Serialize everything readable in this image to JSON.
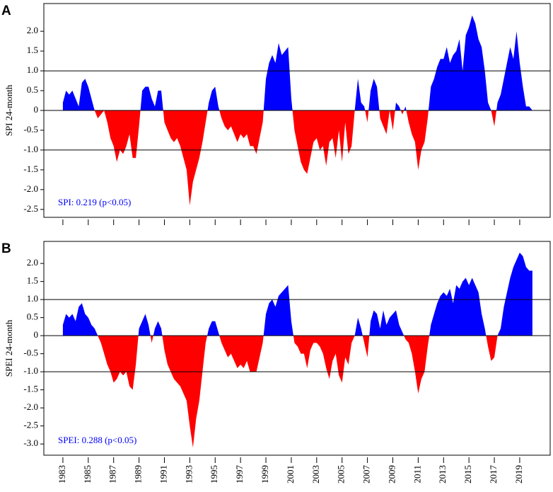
{
  "chart_data": [
    {
      "type": "area",
      "panel_label": "A",
      "ylabel": "SPI 24-month",
      "annotation": "SPI: 0.219 (p<0.05)",
      "pos_color": "#0000ff",
      "neg_color": "#ff0000",
      "hlines": [
        -1,
        0,
        1
      ],
      "xlim": [
        1981.5,
        2021.4
      ],
      "ylim": [
        -2.7,
        2.7
      ],
      "yticks": [
        {
          "value": 2,
          "label": "2.0"
        },
        1.5,
        {
          "value": 1,
          "label": "1.0"
        },
        0.5,
        0,
        -0.5,
        {
          "value": -1,
          "label": "-1.0"
        },
        -1.5,
        {
          "value": -2,
          "label": "-2.0"
        },
        -2.5
      ],
      "xticks": [
        1983,
        1985,
        1987,
        1989,
        1991,
        1993,
        1995,
        1997,
        1999,
        2001,
        2003,
        2005,
        2007,
        2009,
        2011,
        2013,
        2015,
        2017,
        2019
      ],
      "x": [
        1983,
        1983.25,
        1983.5,
        1983.75,
        1984,
        1984.25,
        1984.5,
        1984.75,
        1985,
        1985.25,
        1985.5,
        1985.75,
        1986,
        1986.25,
        1986.5,
        1986.75,
        1987,
        1987.25,
        1987.5,
        1987.75,
        1988,
        1988.25,
        1988.5,
        1988.75,
        1989,
        1989.25,
        1989.5,
        1989.75,
        1990,
        1990.25,
        1990.5,
        1990.75,
        1991,
        1991.25,
        1991.5,
        1991.75,
        1992,
        1992.25,
        1992.5,
        1992.75,
        1993,
        1993.25,
        1993.5,
        1993.75,
        1994,
        1994.25,
        1994.5,
        1994.75,
        1995,
        1995.25,
        1995.5,
        1995.75,
        1996,
        1996.25,
        1996.5,
        1996.75,
        1997,
        1997.25,
        1997.5,
        1997.75,
        1998,
        1998.25,
        1998.5,
        1998.75,
        1999,
        1999.25,
        1999.5,
        1999.75,
        2000,
        2000.25,
        2000.5,
        2000.75,
        2001,
        2001.25,
        2001.5,
        2001.75,
        2002,
        2002.25,
        2002.5,
        2002.75,
        2003,
        2003.25,
        2003.5,
        2003.75,
        2004,
        2004.25,
        2004.5,
        2004.75,
        2005,
        2005.25,
        2005.5,
        2005.75,
        2006,
        2006.25,
        2006.5,
        2006.75,
        2007,
        2007.25,
        2007.5,
        2007.75,
        2008,
        2008.25,
        2008.5,
        2008.75,
        2009,
        2009.25,
        2009.5,
        2009.75,
        2010,
        2010.25,
        2010.5,
        2010.75,
        2011,
        2011.25,
        2011.5,
        2011.75,
        2012,
        2012.25,
        2012.5,
        2012.75,
        2013,
        2013.25,
        2013.5,
        2013.75,
        2014,
        2014.25,
        2014.5,
        2014.75,
        2015,
        2015.25,
        2015.5,
        2015.75,
        2016,
        2016.25,
        2016.5,
        2016.75,
        2017,
        2017.25,
        2017.5,
        2017.75,
        2018,
        2018.25,
        2018.5,
        2018.75,
        2019,
        2019.25,
        2019.5,
        2019.75,
        2020
      ],
      "values": [
        0.2,
        0.5,
        0.4,
        0.5,
        0.3,
        0.1,
        0.7,
        0.8,
        0.6,
        0.3,
        0.0,
        -0.2,
        -0.1,
        0.0,
        -0.3,
        -0.7,
        -0.9,
        -1.3,
        -1.0,
        -1.1,
        -0.9,
        -0.6,
        -1.2,
        -1.2,
        -0.4,
        0.5,
        0.6,
        0.6,
        0.3,
        0.1,
        0.5,
        0.5,
        -0.3,
        -0.5,
        -0.7,
        -0.8,
        -0.7,
        -0.9,
        -1.2,
        -1.5,
        -2.4,
        -1.8,
        -1.5,
        -1.2,
        -0.8,
        -0.3,
        0.2,
        0.5,
        0.6,
        0.1,
        -0.2,
        -0.4,
        -0.5,
        -0.4,
        -0.6,
        -0.8,
        -0.6,
        -0.7,
        -0.6,
        -0.9,
        -0.9,
        -1.1,
        -0.7,
        -0.3,
        0.8,
        1.2,
        1.4,
        1.2,
        1.7,
        1.4,
        1.5,
        1.6,
        0.3,
        -0.5,
        -0.9,
        -1.3,
        -1.5,
        -1.6,
        -1.2,
        -0.8,
        -0.7,
        -1.0,
        -0.9,
        -1.4,
        -0.8,
        -0.7,
        -1.2,
        -0.5,
        -1.3,
        -0.3,
        -1.1,
        -0.9,
        0.0,
        0.8,
        0.2,
        0.1,
        -0.3,
        0.5,
        0.8,
        0.6,
        -0.2,
        -0.4,
        -0.6,
        0.0,
        -0.5,
        0.2,
        0.1,
        -0.1,
        0.1,
        -0.3,
        -0.6,
        -0.8,
        -1.5,
        -1.0,
        -0.8,
        -0.2,
        0.6,
        0.8,
        1.1,
        1.3,
        1.3,
        1.6,
        1.2,
        1.4,
        1.5,
        1.8,
        1.0,
        1.9,
        2.1,
        2.4,
        2.2,
        1.8,
        1.6,
        1.0,
        0.2,
        0.0,
        -0.4,
        0.2,
        0.4,
        0.8,
        1.2,
        1.6,
        1.3,
        2.0,
        1.2,
        0.6,
        0.1,
        0.1,
        0.0
      ]
    },
    {
      "type": "area",
      "panel_label": "B",
      "ylabel": "SPEI 24-month",
      "annotation": "SPEI: 0.288 (p<0.05)",
      "pos_color": "#0000ff",
      "neg_color": "#ff0000",
      "hlines": [
        -1,
        0,
        1
      ],
      "xlim": [
        1981.5,
        2021.4
      ],
      "ylim": [
        -3.31,
        2.61
      ],
      "yticks": [
        {
          "value": 2,
          "label": "2.0"
        },
        1.5,
        {
          "value": 1,
          "label": "1.0"
        },
        0.5,
        0,
        -0.5,
        {
          "value": -1,
          "label": "-1.0"
        },
        -1.5,
        {
          "value": -2,
          "label": "-2.0"
        },
        -2.5,
        {
          "value": -3,
          "label": "-3.0"
        }
      ],
      "xticks": [
        1983,
        1985,
        1987,
        1989,
        1991,
        1993,
        1995,
        1997,
        1999,
        2001,
        2003,
        2005,
        2007,
        2009,
        2011,
        2013,
        2015,
        2017,
        2019
      ],
      "x": [
        1983,
        1983.25,
        1983.5,
        1983.75,
        1984,
        1984.25,
        1984.5,
        1984.75,
        1985,
        1985.25,
        1985.5,
        1985.75,
        1986,
        1986.25,
        1986.5,
        1986.75,
        1987,
        1987.25,
        1987.5,
        1987.75,
        1988,
        1988.25,
        1988.5,
        1988.75,
        1989,
        1989.25,
        1989.5,
        1989.75,
        1990,
        1990.25,
        1990.5,
        1990.75,
        1991,
        1991.25,
        1991.5,
        1991.75,
        1992,
        1992.25,
        1992.5,
        1992.75,
        1993,
        1993.25,
        1993.5,
        1993.75,
        1994,
        1994.25,
        1994.5,
        1994.75,
        1995,
        1995.25,
        1995.5,
        1995.75,
        1996,
        1996.25,
        1996.5,
        1996.75,
        1997,
        1997.25,
        1997.5,
        1997.75,
        1998,
        1998.25,
        1998.5,
        1998.75,
        1999,
        1999.25,
        1999.5,
        1999.75,
        2000,
        2000.25,
        2000.5,
        2000.75,
        2001,
        2001.25,
        2001.5,
        2001.75,
        2002,
        2002.25,
        2002.5,
        2002.75,
        2003,
        2003.25,
        2003.5,
        2003.75,
        2004,
        2004.25,
        2004.5,
        2004.75,
        2005,
        2005.25,
        2005.5,
        2005.75,
        2006,
        2006.25,
        2006.5,
        2006.75,
        2007,
        2007.25,
        2007.5,
        2007.75,
        2008,
        2008.25,
        2008.5,
        2008.75,
        2009,
        2009.25,
        2009.5,
        2009.75,
        2010,
        2010.25,
        2010.5,
        2010.75,
        2011,
        2011.25,
        2011.5,
        2011.75,
        2012,
        2012.25,
        2012.5,
        2012.75,
        2013,
        2013.25,
        2013.5,
        2013.75,
        2014,
        2014.25,
        2014.5,
        2014.75,
        2015,
        2015.25,
        2015.5,
        2015.75,
        2016,
        2016.25,
        2016.5,
        2016.75,
        2017,
        2017.25,
        2017.5,
        2017.75,
        2018,
        2018.25,
        2018.5,
        2018.75,
        2019,
        2019.25,
        2019.5,
        2019.75,
        2020
      ],
      "values": [
        0.3,
        0.6,
        0.5,
        0.6,
        0.4,
        0.8,
        0.9,
        0.6,
        0.5,
        0.3,
        0.2,
        0.0,
        -0.2,
        -0.5,
        -0.8,
        -1.0,
        -1.3,
        -1.2,
        -1.0,
        -1.1,
        -1.0,
        -1.4,
        -1.5,
        -0.8,
        0.2,
        0.4,
        0.6,
        0.3,
        -0.2,
        0.2,
        0.4,
        0.2,
        -0.4,
        -0.8,
        -1.0,
        -1.2,
        -1.3,
        -1.4,
        -1.6,
        -1.8,
        -2.5,
        -3.1,
        -2.3,
        -1.8,
        -1.0,
        -0.2,
        0.2,
        0.4,
        0.4,
        0.1,
        -0.2,
        -0.4,
        -0.6,
        -0.5,
        -0.7,
        -0.9,
        -0.8,
        -0.9,
        -0.7,
        -1.0,
        -1.0,
        -1.0,
        -0.6,
        -0.2,
        0.6,
        0.9,
        1.0,
        0.8,
        1.1,
        1.2,
        1.3,
        1.4,
        0.4,
        -0.2,
        -0.3,
        -0.5,
        -0.5,
        -0.9,
        -0.4,
        -0.2,
        -0.2,
        -0.3,
        -0.5,
        -0.9,
        -1.2,
        -0.7,
        -0.5,
        -1.1,
        -1.3,
        -0.6,
        -0.8,
        -0.2,
        0.0,
        0.5,
        0.2,
        -0.2,
        -0.6,
        0.4,
        0.7,
        0.6,
        0.2,
        0.7,
        0.3,
        0.5,
        0.6,
        0.7,
        0.3,
        0.1,
        -0.1,
        -0.2,
        -0.5,
        -1.0,
        -1.6,
        -1.2,
        -1.0,
        -0.3,
        0.3,
        0.6,
        0.9,
        1.1,
        1.2,
        1.1,
        1.3,
        0.9,
        1.4,
        1.3,
        1.5,
        1.6,
        1.4,
        1.6,
        1.4,
        1.2,
        0.6,
        0.2,
        -0.3,
        -0.7,
        -0.6,
        0.0,
        0.2,
        0.8,
        1.2,
        1.6,
        1.9,
        2.1,
        2.3,
        2.2,
        1.9,
        1.8,
        1.8
      ]
    }
  ]
}
